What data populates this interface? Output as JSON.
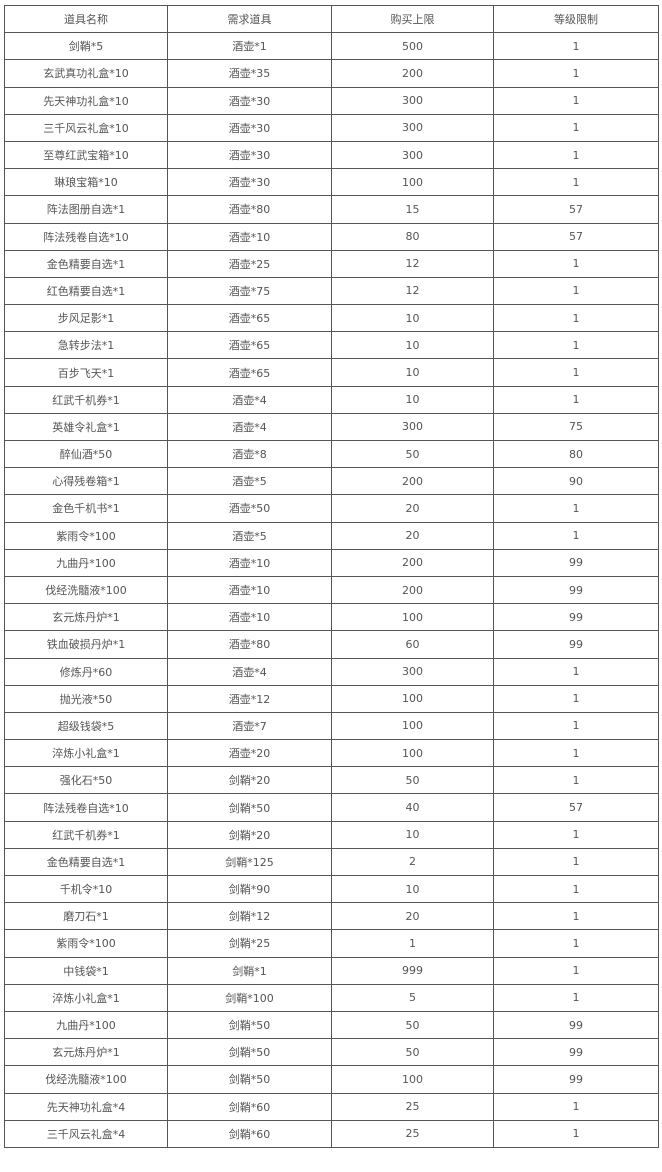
{
  "header": [
    "道具名称",
    "需求道具",
    "购买上限",
    "等级限制"
  ],
  "rows": [
    [
      "剑鞘*5",
      "酒壶*1",
      "500",
      "1"
    ],
    [
      "玄武真功礼盒*10",
      "酒壶*35",
      "200",
      "1"
    ],
    [
      "先天神功礼盒*10",
      "酒壶*30",
      "300",
      "1"
    ],
    [
      "三千风云礼盒*10",
      "酒壶*30",
      "300",
      "1"
    ],
    [
      "至尊红武宝箱*10",
      "酒壶*30",
      "300",
      "1"
    ],
    [
      "琳琅宝箱*10",
      "酒壶*30",
      "100",
      "1"
    ],
    [
      "阵法图册自选*1",
      "酒壶*80",
      "15",
      "57"
    ],
    [
      "阵法残卷自选*10",
      "酒壶*10",
      "80",
      "57"
    ],
    [
      "金色精要自选*1",
      "酒壶*25",
      "12",
      "1"
    ],
    [
      "红色精要自选*1",
      "酒壶*75",
      "12",
      "1"
    ],
    [
      "步风足影*1",
      "酒壶*65",
      "10",
      "1"
    ],
    [
      "急转步法*1",
      "酒壶*65",
      "10",
      "1"
    ],
    [
      "百步飞天*1",
      "酒壶*65",
      "10",
      "1"
    ],
    [
      "红武千机券*1",
      "酒壶*4",
      "10",
      "1"
    ],
    [
      "英雄令礼盒*1",
      "酒壶*4",
      "300",
      "75"
    ],
    [
      "醉仙酒*50",
      "酒壶*8",
      "50",
      "80"
    ],
    [
      "心得残卷箱*1",
      "酒壶*5",
      "200",
      "90"
    ],
    [
      "金色千机书*1",
      "酒壶*50",
      "20",
      "1"
    ],
    [
      "紫雨令*100",
      "酒壶*5",
      "20",
      "1"
    ],
    [
      "九曲丹*100",
      "酒壶*10",
      "200",
      "99"
    ],
    [
      "伐经洗髓液*100",
      "酒壶*10",
      "200",
      "99"
    ],
    [
      "玄元炼丹炉*1",
      "酒壶*10",
      "100",
      "99"
    ],
    [
      "铁血破损丹炉*1",
      "酒壶*80",
      "60",
      "99"
    ],
    [
      "修炼丹*60",
      "酒壶*4",
      "300",
      "1"
    ],
    [
      "抛光液*50",
      "酒壶*12",
      "100",
      "1"
    ],
    [
      "超级钱袋*5",
      "酒壶*7",
      "100",
      "1"
    ],
    [
      "淬炼小礼盒*1",
      "酒壶*20",
      "100",
      "1"
    ],
    [
      "强化石*50",
      "剑鞘*20",
      "50",
      "1"
    ],
    [
      "阵法残卷自选*10",
      "剑鞘*50",
      "40",
      "57"
    ],
    [
      "红武千机券*1",
      "剑鞘*20",
      "10",
      "1"
    ],
    [
      "金色精要自选*1",
      "剑鞘*125",
      "2",
      "1"
    ],
    [
      "千机令*10",
      "剑鞘*90",
      "10",
      "1"
    ],
    [
      "磨刀石*1",
      "剑鞘*12",
      "20",
      "1"
    ],
    [
      "紫雨令*100",
      "剑鞘*25",
      "1",
      "1"
    ],
    [
      "中钱袋*1",
      "剑鞘*1",
      "999",
      "1"
    ],
    [
      "淬炼小礼盒*1",
      "剑鞘*100",
      "5",
      "1"
    ],
    [
      "九曲丹*100",
      "剑鞘*50",
      "50",
      "99"
    ],
    [
      "玄元炼丹炉*1",
      "剑鞘*50",
      "50",
      "99"
    ],
    [
      "伐经洗髓液*100",
      "剑鞘*50",
      "100",
      "99"
    ],
    [
      "先天神功礼盒*4",
      "剑鞘*60",
      "25",
      "1"
    ],
    [
      "三千风云礼盒*4",
      "剑鞘*60",
      "25",
      "1"
    ]
  ]
}
